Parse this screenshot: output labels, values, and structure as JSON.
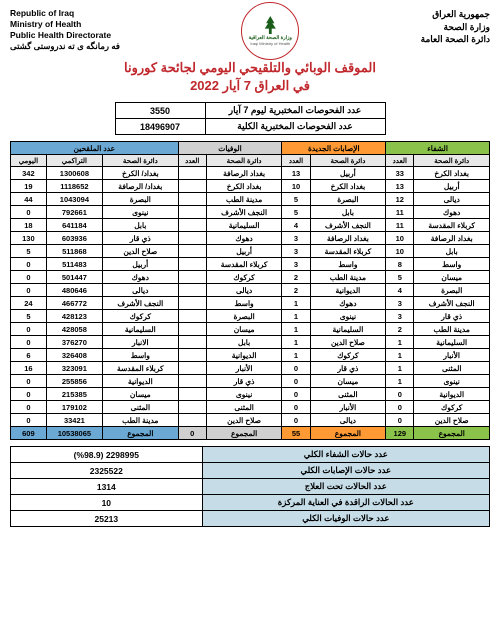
{
  "header": {
    "left": {
      "l1": "Republic of Iraq",
      "l2": "Ministry of Health",
      "l3": "Public Health Directorate",
      "l4": "فه رمانگه ی ته ندروستی گشتی"
    },
    "right": {
      "l1": "جمهورية العراق",
      "l2": "وزارة الصحة",
      "l3": "دائرة الصحة العامة"
    },
    "logo": {
      "ar": "وزارة الصحة العراقية",
      "en": "Iraqi Ministry of Health"
    }
  },
  "title": "الموقف الوبائي والتلقيحي اليومي لجائحة كورونا",
  "subtitle": "في العراق  7 آيار 2022",
  "tests": {
    "daily_label": "عدد الفحوصات المختبرية  ليوم  7   آيار",
    "daily_val": "3550",
    "total_label": "عدد الفحوصات المختبرية الكلية",
    "total_val": "18496907"
  },
  "colhead": {
    "recoveries": "الشفاء",
    "new": "الإصابات الجديدة",
    "deaths": "الوفيات",
    "vacc": "عدد الملقحين",
    "dir": "دائرة الصحة",
    "count": "العدد",
    "cum": "التراكمي",
    "daily": "اليومي"
  },
  "rows": [
    {
      "r_dir": "بغداد الكرخ",
      "r": "33",
      "n_dir": "أربيل",
      "n": "13",
      "d_dir": "بغداد الرصافة",
      "d": "",
      "v_dir": "بغداد/ الكرخ",
      "v_cum": "1300608",
      "v_d": "342"
    },
    {
      "r_dir": "أربيل",
      "r": "13",
      "n_dir": "بغداد الكرخ",
      "n": "10",
      "d_dir": "بغداد الكرخ",
      "d": "",
      "v_dir": "بغداد/ الرصافة",
      "v_cum": "1118652",
      "v_d": "19"
    },
    {
      "r_dir": "ديالى",
      "r": "12",
      "n_dir": "البصرة",
      "n": "5",
      "d_dir": "مدينة الطب",
      "d": "",
      "v_dir": "البصرة",
      "v_cum": "1043094",
      "v_d": "44"
    },
    {
      "r_dir": "دهوك",
      "r": "11",
      "n_dir": "بابل",
      "n": "5",
      "d_dir": "النجف الأشرف",
      "d": "",
      "v_dir": "نينوى",
      "v_cum": "792661",
      "v_d": "0"
    },
    {
      "r_dir": "كربلاء المقدسة",
      "r": "11",
      "n_dir": "النجف الأشرف",
      "n": "4",
      "d_dir": "السليمانية",
      "d": "",
      "v_dir": "بابل",
      "v_cum": "641184",
      "v_d": "18"
    },
    {
      "r_dir": "بغداد الرصافة",
      "r": "10",
      "n_dir": "بغداد الرصافة",
      "n": "3",
      "d_dir": "دهوك",
      "d": "",
      "v_dir": "ذي قار",
      "v_cum": "603936",
      "v_d": "130"
    },
    {
      "r_dir": "بابل",
      "r": "10",
      "n_dir": "كربلاء المقدسة",
      "n": "3",
      "d_dir": "أربيل",
      "d": "",
      "v_dir": "صلاح الدين",
      "v_cum": "511868",
      "v_d": "5"
    },
    {
      "r_dir": "واسط",
      "r": "8",
      "n_dir": "واسط",
      "n": "3",
      "d_dir": "كربلاء المقدسة",
      "d": "",
      "v_dir": "أربيل",
      "v_cum": "511483",
      "v_d": "0"
    },
    {
      "r_dir": "ميسان",
      "r": "5",
      "n_dir": "مدينة الطب",
      "n": "2",
      "d_dir": "كركوك",
      "d": "",
      "v_dir": "دهوك",
      "v_cum": "501447",
      "v_d": "0"
    },
    {
      "r_dir": "البصرة",
      "r": "4",
      "n_dir": "الديوانية",
      "n": "2",
      "d_dir": "ديالى",
      "d": "",
      "v_dir": "ديالى",
      "v_cum": "480646",
      "v_d": "0"
    },
    {
      "r_dir": "النجف الأشرف",
      "r": "3",
      "n_dir": "دهوك",
      "n": "1",
      "d_dir": "واسط",
      "d": "",
      "v_dir": "النجف الأشرف",
      "v_cum": "466772",
      "v_d": "24"
    },
    {
      "r_dir": "ذي قار",
      "r": "3",
      "n_dir": "نينوى",
      "n": "1",
      "d_dir": "البصرة",
      "d": "",
      "v_dir": "كركوك",
      "v_cum": "428123",
      "v_d": "5"
    },
    {
      "r_dir": "مدينة الطب",
      "r": "2",
      "n_dir": "السليمانية",
      "n": "1",
      "d_dir": "ميسان",
      "d": "",
      "v_dir": "السليمانية",
      "v_cum": "428058",
      "v_d": "0"
    },
    {
      "r_dir": "السليمانية",
      "r": "1",
      "n_dir": "صلاح الدين",
      "n": "1",
      "d_dir": "بابل",
      "d": "",
      "v_dir": "الانبار",
      "v_cum": "376270",
      "v_d": "0"
    },
    {
      "r_dir": "الأنبار",
      "r": "1",
      "n_dir": "كركوك",
      "n": "1",
      "d_dir": "الديوانية",
      "d": "",
      "v_dir": "واسط",
      "v_cum": "326408",
      "v_d": "6"
    },
    {
      "r_dir": "المثنى",
      "r": "1",
      "n_dir": "ذي قار",
      "n": "0",
      "d_dir": "الأنبار",
      "d": "",
      "v_dir": "كربلاء المقدسة",
      "v_cum": "323091",
      "v_d": "16"
    },
    {
      "r_dir": "نينوى",
      "r": "1",
      "n_dir": "ميسان",
      "n": "0",
      "d_dir": "ذي قار",
      "d": "",
      "v_dir": "الديوانية",
      "v_cum": "255856",
      "v_d": "0"
    },
    {
      "r_dir": "الديوانية",
      "r": "0",
      "n_dir": "المثنى",
      "n": "0",
      "d_dir": "نينوى",
      "d": "",
      "v_dir": "ميسان",
      "v_cum": "215385",
      "v_d": "0"
    },
    {
      "r_dir": "كركوك",
      "r": "0",
      "n_dir": "الأنبار",
      "n": "0",
      "d_dir": "المثنى",
      "d": "",
      "v_dir": "المثنى",
      "v_cum": "179102",
      "v_d": "0"
    },
    {
      "r_dir": "صلاح الدين",
      "r": "0",
      "n_dir": "ديالى",
      "n": "0",
      "d_dir": "صلاح الدين",
      "d": "",
      "v_dir": "مدينة الطب",
      "v_cum": "33421",
      "v_d": "0"
    }
  ],
  "totals": {
    "label": "المجموع",
    "r": "129",
    "n": "55",
    "d": "0",
    "v_cum": "10538065",
    "v_d": "609"
  },
  "summary": [
    {
      "label": "عدد حالات الشفاء الكلي",
      "val": "2298995 (%98.9)"
    },
    {
      "label": "عدد حالات الإصابات الكلي",
      "val": "2325522"
    },
    {
      "label": "عدد الحالات تحت العلاج",
      "val": "1314"
    },
    {
      "label": "عدد الحالات الراقدة في العناية المركزة",
      "val": "10"
    },
    {
      "label": "عدد حالات الوفيات الكلي",
      "val": "25213"
    }
  ]
}
